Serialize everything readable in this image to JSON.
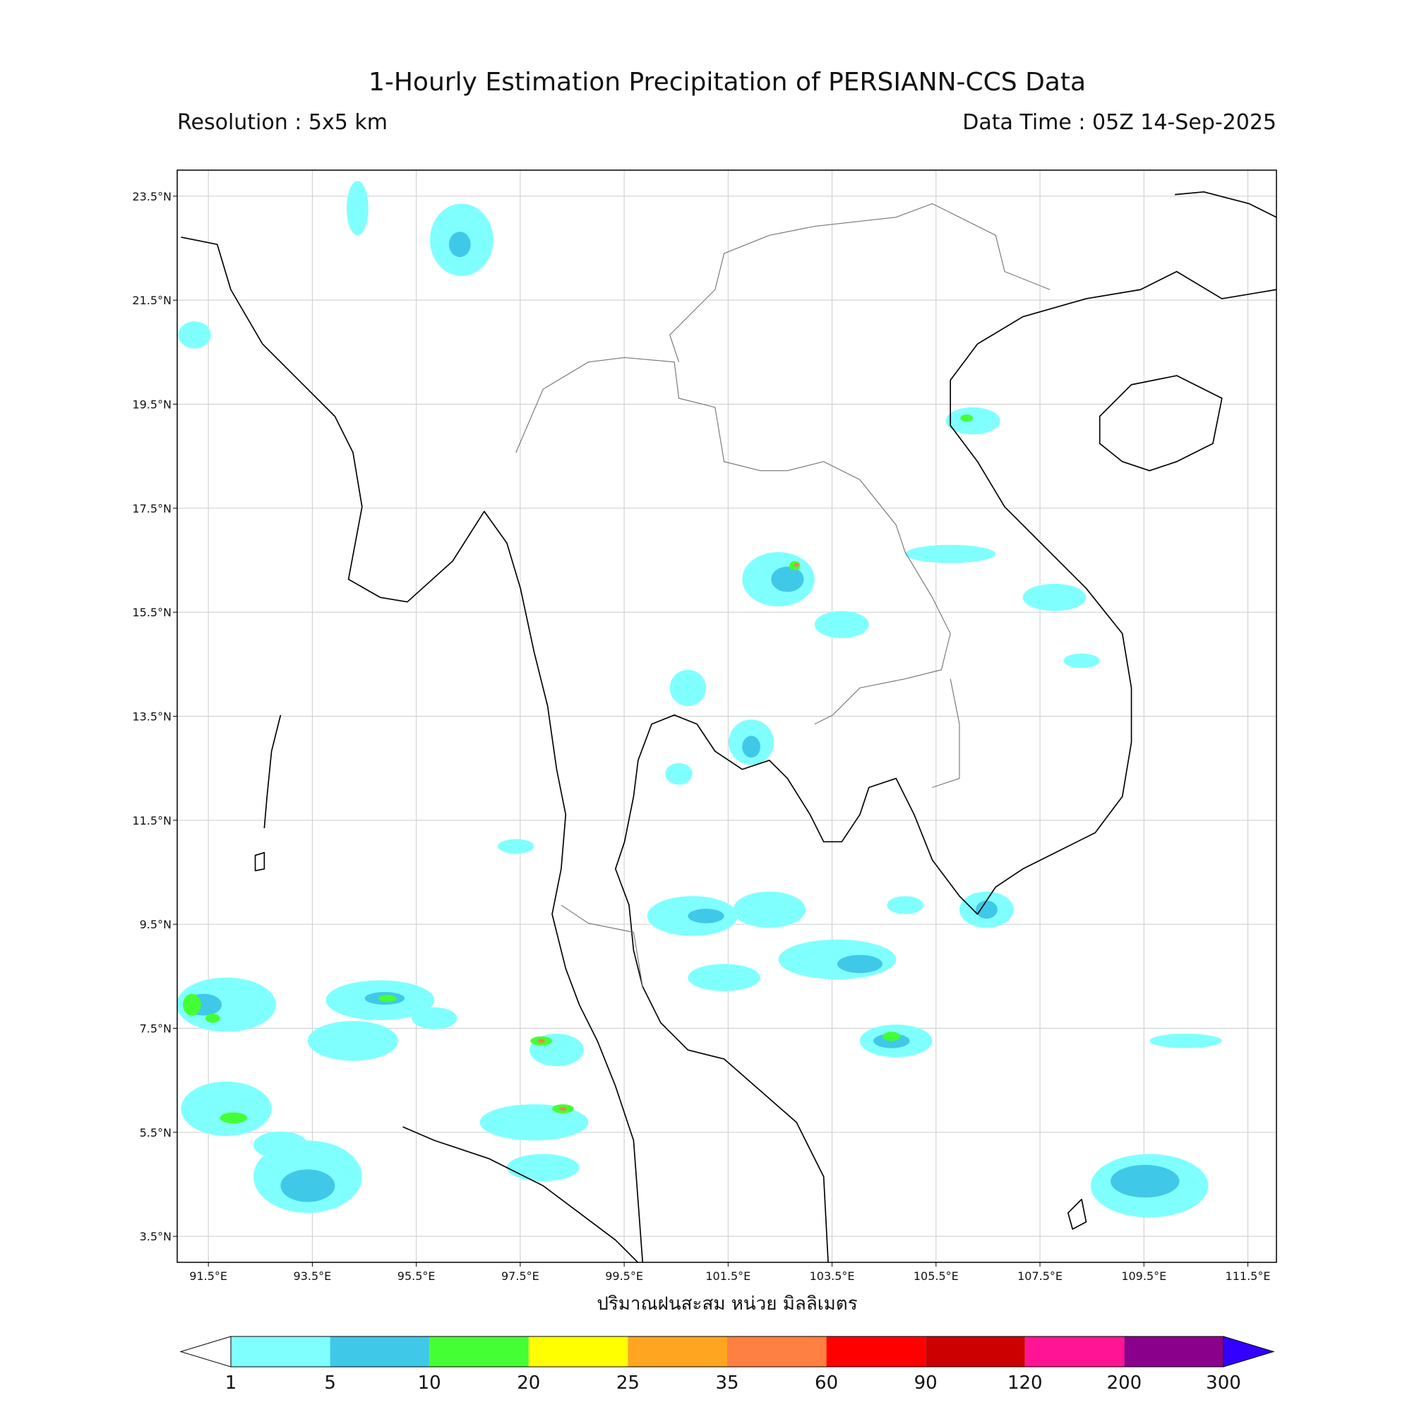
{
  "title": "1-Hourly Estimation Precipitation of PERSIANN-CCS Data",
  "resolution": "Resolution : 5x5 km",
  "data_time": "Data Time : 05Z 14-Sep-2025",
  "map": {
    "xlim": [
      90.9,
      112.05
    ],
    "ylim": [
      3,
      24
    ],
    "xticks": [
      {
        "value": 91.5,
        "label": "91.5°E"
      },
      {
        "value": 93.5,
        "label": "93.5°E"
      },
      {
        "value": 95.5,
        "label": "95.5°E"
      },
      {
        "value": 97.5,
        "label": "97.5°E"
      },
      {
        "value": 99.5,
        "label": "99.5°E"
      },
      {
        "value": 101.5,
        "label": "101.5°E"
      },
      {
        "value": 103.5,
        "label": "103.5°E"
      },
      {
        "value": 105.5,
        "label": "105.5°E"
      },
      {
        "value": 107.5,
        "label": "107.5°E"
      },
      {
        "value": 109.5,
        "label": "109.5°E"
      },
      {
        "value": 111.5,
        "label": "111.5°E"
      }
    ],
    "yticks": [
      {
        "value": 23.5,
        "label": "23.5°N"
      },
      {
        "value": 21.5,
        "label": "21.5°N"
      },
      {
        "value": 19.5,
        "label": "19.5°N"
      },
      {
        "value": 17.5,
        "label": "17.5°N"
      },
      {
        "value": 15.5,
        "label": "15.5°N"
      },
      {
        "value": 13.5,
        "label": "13.5°N"
      },
      {
        "value": 11.5,
        "label": "11.5°N"
      },
      {
        "value": 9.5,
        "label": "9.5°N"
      },
      {
        "value": 7.5,
        "label": "7.5°N"
      },
      {
        "value": 5.5,
        "label": "5.5°N"
      },
      {
        "value": 3.5,
        "label": "3.5°N"
      }
    ],
    "grid": true
  },
  "colorbar": {
    "label": "ปริมาณฝนสะสม หน่วย มิลลิเมตร",
    "bounds": [
      1,
      5,
      10,
      20,
      25,
      35,
      60,
      90,
      120,
      200,
      300
    ],
    "colors": [
      "#80ffff",
      "#40c8e8",
      "#44ff33",
      "#ffff00",
      "#ffa520",
      "#ff8040",
      "#ff0000",
      "#cc0000",
      "#ff1493",
      "#8b008b"
    ],
    "under_color": "#ffffff",
    "over_color": "#3300ff"
  }
}
